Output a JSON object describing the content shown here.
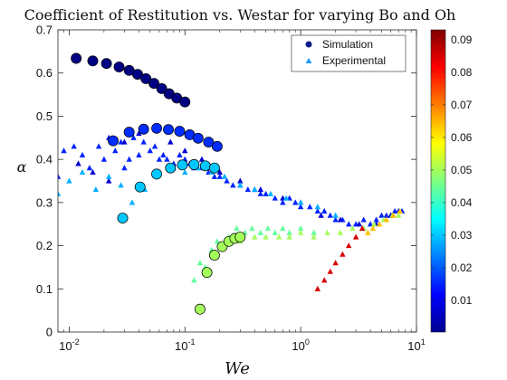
{
  "chart_data": {
    "type": "scatter",
    "title": "Coefficient of Restitution vs. Westar for varying Bo and Oh",
    "xlabel": "We",
    "ylabel": "α",
    "xscale": "log",
    "xlim": [
      0.008,
      10
    ],
    "ylim": [
      0,
      0.7
    ],
    "x_ticks": [
      {
        "value": 0.01,
        "base": "10",
        "exp": "-2"
      },
      {
        "value": 0.1,
        "base": "10",
        "exp": "-1"
      },
      {
        "value": 1,
        "base": "10",
        "exp": "0"
      },
      {
        "value": 10,
        "base": "10",
        "exp": "1"
      }
    ],
    "y_ticks": [
      {
        "value": 0,
        "label": "0"
      },
      {
        "value": 0.1,
        "label": "0.1"
      },
      {
        "value": 0.2,
        "label": "0.2"
      },
      {
        "value": 0.3,
        "label": "0.3"
      },
      {
        "value": 0.4,
        "label": "0.4"
      },
      {
        "value": 0.5,
        "label": "0.5"
      },
      {
        "value": 0.6,
        "label": "0.6"
      },
      {
        "value": 0.7,
        "label": "0.7"
      }
    ],
    "legend": {
      "position": "top-right",
      "entries": [
        {
          "label": "Simulation",
          "marker": "circle",
          "color": "#0a1a8c"
        },
        {
          "label": "Experimental",
          "marker": "triangle",
          "color": "#1f9bff"
        }
      ]
    },
    "colorbar": {
      "min": 0.0003,
      "max": 0.093,
      "colormap": "jet",
      "ticks": [
        {
          "value": 0.01,
          "label": "0.01"
        },
        {
          "value": 0.02,
          "label": "0.02"
        },
        {
          "value": 0.03,
          "label": "0.03"
        },
        {
          "value": 0.04,
          "label": "0.04"
        },
        {
          "value": 0.05,
          "label": "0.05"
        },
        {
          "value": 0.06,
          "label": "0.06"
        },
        {
          "value": 0.07,
          "label": "0.07"
        },
        {
          "value": 0.08,
          "label": "0.08"
        },
        {
          "value": 0.09,
          "label": "0.09"
        }
      ]
    },
    "series": [
      {
        "name": "Simulation",
        "marker": "circle",
        "color_value": 0.0005,
        "x": [
          0.0115,
          0.016,
          0.021,
          0.027,
          0.033,
          0.039,
          0.046,
          0.054,
          0.063,
          0.073,
          0.085,
          0.1
        ],
        "y": [
          0.634,
          0.628,
          0.622,
          0.614,
          0.606,
          0.597,
          0.587,
          0.576,
          0.564,
          0.552,
          0.542,
          0.533
        ]
      },
      {
        "name": "Simulation",
        "marker": "circle",
        "color_value": 0.016,
        "x": [
          0.024,
          0.033,
          0.044,
          0.057,
          0.072,
          0.09,
          0.11,
          0.13,
          0.16,
          0.19
        ],
        "y": [
          0.443,
          0.463,
          0.47,
          0.472,
          0.469,
          0.465,
          0.457,
          0.449,
          0.44,
          0.43
        ]
      },
      {
        "name": "Simulation",
        "marker": "circle",
        "color_value": 0.03,
        "x": [
          0.029,
          0.041,
          0.057,
          0.075,
          0.095,
          0.12,
          0.15,
          0.18
        ],
        "y": [
          0.264,
          0.336,
          0.366,
          0.38,
          0.387,
          0.388,
          0.385,
          0.38
        ]
      },
      {
        "name": "Simulation",
        "marker": "circle",
        "color_value": 0.05,
        "x": [
          0.135,
          0.155,
          0.18,
          0.21,
          0.24,
          0.27,
          0.3
        ],
        "y": [
          0.053,
          0.138,
          0.178,
          0.198,
          0.21,
          0.217,
          0.22
        ]
      },
      {
        "name": "Experimental",
        "marker": "triangle",
        "color_value": 0.015,
        "x": [
          0.008,
          0.009,
          0.011,
          0.013,
          0.015,
          0.018,
          0.02,
          0.022,
          0.025,
          0.028,
          0.03,
          0.033,
          0.036,
          0.04,
          0.044,
          0.05,
          0.055,
          0.06,
          0.065,
          0.07,
          0.08,
          0.09,
          0.1,
          0.11,
          0.12,
          0.14,
          0.16,
          0.18,
          0.2,
          0.23,
          0.26,
          0.3,
          0.35,
          0.4,
          0.45,
          0.5,
          0.6,
          0.7,
          0.8,
          0.9,
          1.0,
          1.2,
          1.4,
          1.6,
          1.8,
          2.0,
          2.3,
          2.6,
          3.0,
          3.5,
          4.0,
          4.5,
          5.0,
          5.5,
          6.0,
          6.5,
          7.0,
          7.5
        ],
        "y": [
          0.36,
          0.42,
          0.43,
          0.41,
          0.38,
          0.43,
          0.4,
          0.45,
          0.42,
          0.44,
          0.38,
          0.4,
          0.45,
          0.41,
          0.44,
          0.42,
          0.43,
          0.4,
          0.41,
          0.4,
          0.39,
          0.41,
          0.4,
          0.39,
          0.38,
          0.38,
          0.37,
          0.36,
          0.36,
          0.35,
          0.34,
          0.34,
          0.33,
          0.33,
          0.32,
          0.32,
          0.31,
          0.3,
          0.31,
          0.3,
          0.29,
          0.29,
          0.28,
          0.28,
          0.27,
          0.26,
          0.26,
          0.25,
          0.25,
          0.26,
          0.25,
          0.26,
          0.27,
          0.27,
          0.27,
          0.28,
          0.28,
          0.28
        ]
      },
      {
        "name": "Experimental",
        "marker": "triangle",
        "color_value": 0.008,
        "x": [
          0.012,
          0.016,
          0.022,
          0.03,
          0.04,
          0.055,
          0.075,
          0.1,
          0.14,
          0.2,
          0.3,
          0.45,
          0.7,
          1.0,
          1.5,
          2.2,
          3.2,
          4.5,
          6.0
        ],
        "y": [
          0.39,
          0.37,
          0.35,
          0.44,
          0.46,
          0.47,
          0.44,
          0.42,
          0.4,
          0.37,
          0.35,
          0.33,
          0.31,
          0.3,
          0.27,
          0.26,
          0.25,
          0.25,
          0.27
        ]
      },
      {
        "name": "Experimental",
        "marker": "triangle",
        "color_value": 0.028,
        "x": [
          0.008,
          0.01,
          0.013,
          0.017,
          0.022,
          0.028,
          0.035,
          0.045,
          0.06,
          0.08,
          0.1,
          0.13,
          0.17,
          0.22,
          0.3,
          0.4,
          0.55,
          0.75,
          1.0,
          1.4,
          2.0
        ],
        "y": [
          0.32,
          0.35,
          0.37,
          0.33,
          0.36,
          0.34,
          0.3,
          0.33,
          0.37,
          0.38,
          0.37,
          0.38,
          0.37,
          0.36,
          0.34,
          0.33,
          0.32,
          0.31,
          0.3,
          0.29,
          0.27
        ]
      },
      {
        "name": "Experimental",
        "marker": "triangle",
        "color_value": 0.044,
        "x": [
          0.12,
          0.135,
          0.15,
          0.17,
          0.19,
          0.21,
          0.24,
          0.28,
          0.33,
          0.38,
          0.45,
          0.52,
          0.6,
          0.7,
          0.8,
          1.0,
          1.3
        ],
        "y": [
          0.12,
          0.16,
          0.15,
          0.19,
          0.21,
          0.2,
          0.22,
          0.24,
          0.23,
          0.24,
          0.23,
          0.24,
          0.23,
          0.24,
          0.23,
          0.24,
          0.23
        ]
      },
      {
        "name": "Experimental",
        "marker": "triangle",
        "color_value": 0.05,
        "x": [
          0.3,
          0.4,
          0.5,
          0.65,
          0.8,
          1.0,
          1.3,
          1.7,
          2.2,
          2.8,
          3.5,
          4.3,
          5.2,
          6.2,
          7.0
        ],
        "y": [
          0.21,
          0.22,
          0.22,
          0.22,
          0.22,
          0.23,
          0.22,
          0.23,
          0.23,
          0.24,
          0.24,
          0.25,
          0.26,
          0.27,
          0.27
        ]
      },
      {
        "name": "Experimental",
        "marker": "triangle",
        "color_value": 0.085,
        "x": [
          1.4,
          1.6,
          1.8,
          2.0,
          2.3,
          2.6,
          3.0,
          3.4
        ],
        "y": [
          0.1,
          0.12,
          0.14,
          0.16,
          0.18,
          0.2,
          0.22,
          0.24
        ]
      },
      {
        "name": "Experimental",
        "marker": "triangle",
        "color_value": 0.064,
        "x": [
          3.8,
          4.2,
          4.8,
          5.5,
          6.3,
          7.2
        ],
        "y": [
          0.23,
          0.24,
          0.25,
          0.26,
          0.27,
          0.28
        ]
      }
    ]
  }
}
